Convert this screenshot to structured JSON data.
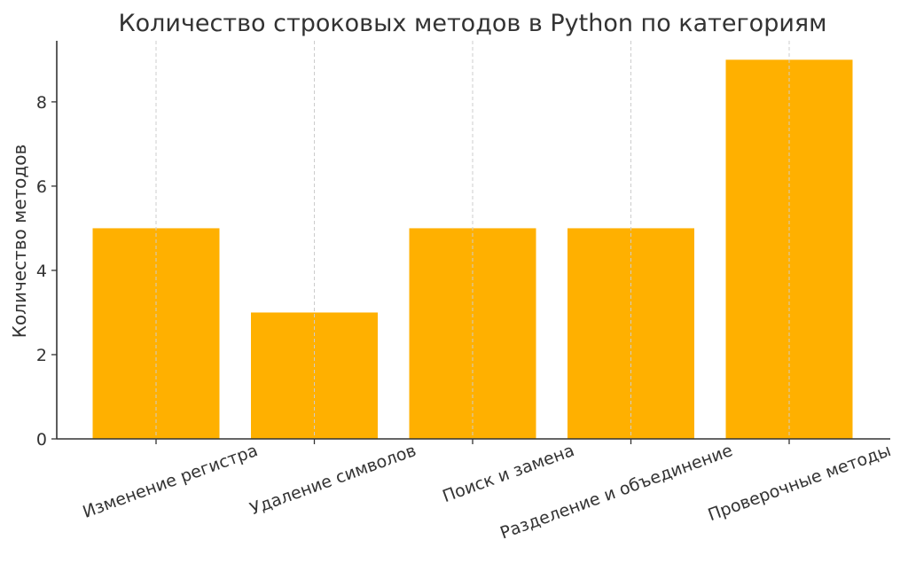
{
  "chart_data": {
    "type": "bar",
    "title": "Количество строковых методов в Python по категориям",
    "xlabel": "",
    "ylabel": "Количество методов",
    "categories": [
      "Изменение регистра",
      "Удаление символов",
      "Поиск и замена",
      "Разделение и объединение",
      "Проверочные методы"
    ],
    "values": [
      5,
      3,
      5,
      5,
      9
    ],
    "ylim": [
      0,
      9.45
    ],
    "yticks": [
      0,
      2,
      4,
      6,
      8
    ],
    "bar_color": "#ffb000",
    "grid": "x-dashed"
  }
}
